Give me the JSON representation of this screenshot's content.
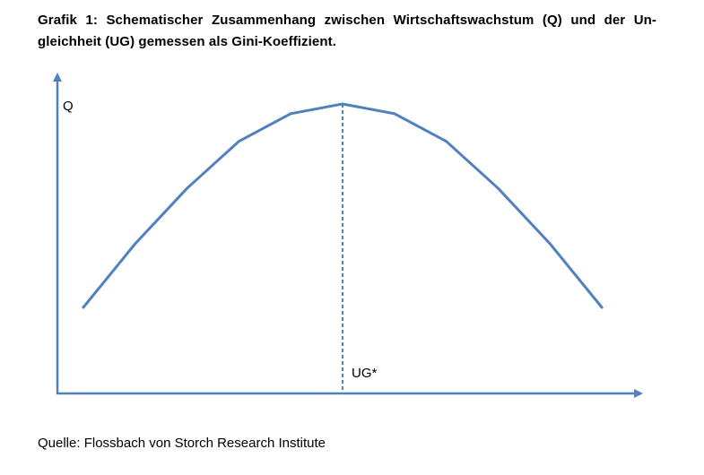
{
  "title": "Grafik 1: Schematischer Zusammenhang zwischen Wirtschaftswachstum (Q) und der Un-gleichheit (UG) gemessen als Gini-Koeffizient.",
  "source": "Quelle: Flossbach von Storch Research Institute",
  "colors": {
    "curve": "#4f81bd",
    "axis": "#4f81bd",
    "marker": "#4f81bd"
  },
  "chart_data": {
    "type": "line",
    "title": "Grafik 1: Schematischer Zusammenhang zwischen Wirtschaftswachstum (Q) und der Un-gleichheit (UG) gemessen als Gini-Koeffizient.",
    "xlabel": "",
    "ylabel": "Q",
    "xlim": [
      0,
      11
    ],
    "ylim": [
      0,
      10
    ],
    "grid": false,
    "x_ticks_shown": false,
    "y_ticks_shown": false,
    "series": [
      {
        "values_x": [
          0.5,
          1.5,
          2.5,
          3.5,
          4.5,
          5.5,
          6.5,
          7.5,
          8.5,
          9.5,
          10.5
        ],
        "values_y": [
          3.0,
          5.3,
          7.3,
          9.0,
          10.0,
          10.35,
          10.0,
          9.0,
          7.3,
          5.3,
          3.0
        ]
      }
    ],
    "annotations": [
      {
        "type": "vline",
        "x": 5.5,
        "label": "UG*",
        "style": "dashed"
      }
    ]
  }
}
